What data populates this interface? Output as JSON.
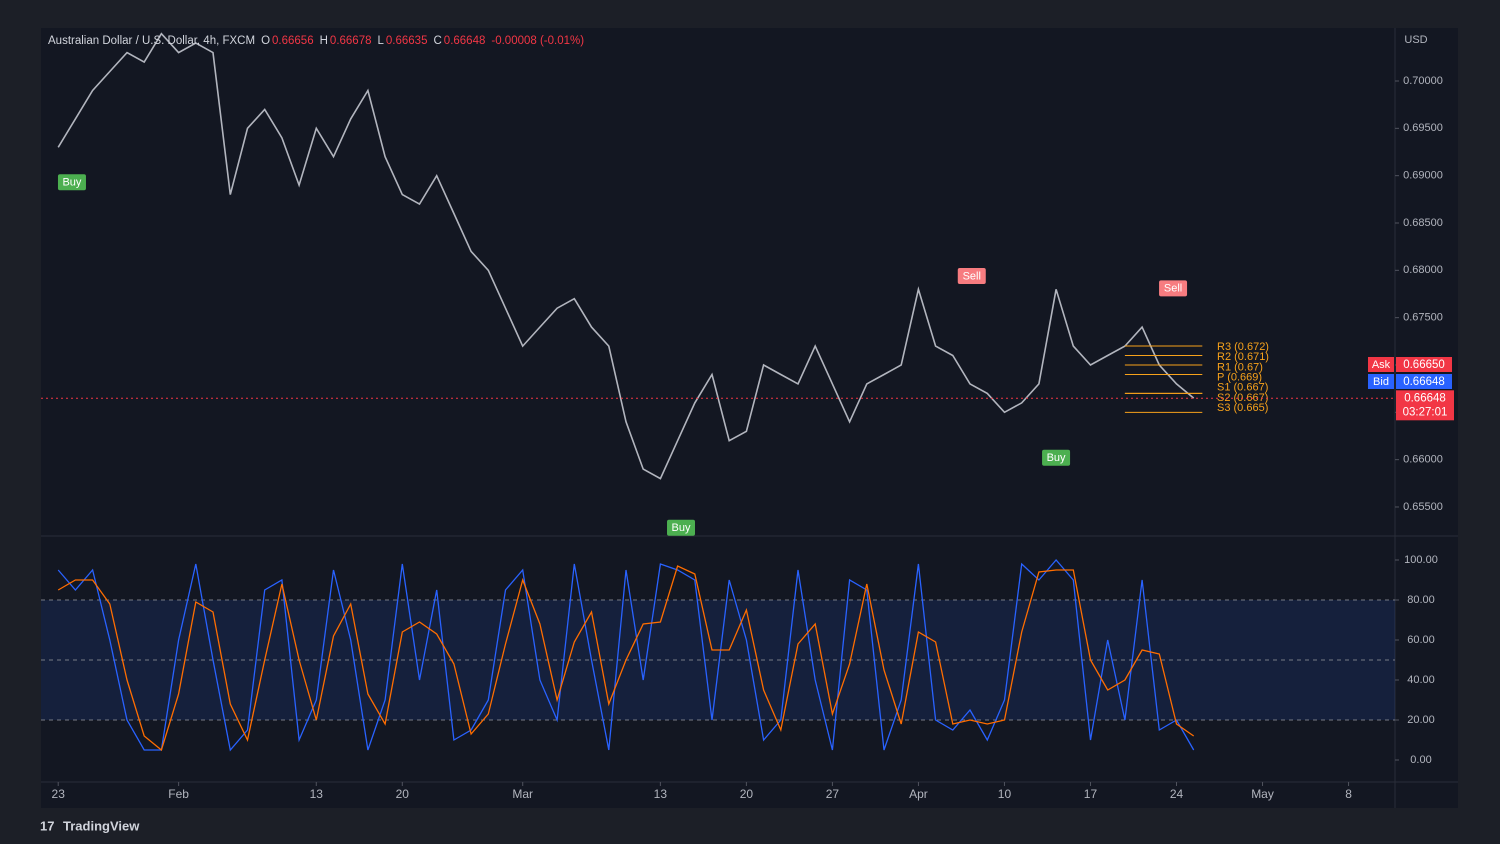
{
  "chart_data": [
    {
      "type": "line",
      "header": {
        "symbol": "Australian Dollar / U.S. Dollar, 4h, FXCM",
        "ohlc": [
          {
            "key": "O",
            "value": 0.66656
          },
          {
            "key": "H",
            "value": 0.66678
          },
          {
            "key": "L",
            "value": 0.66635
          },
          {
            "key": "C",
            "value": 0.66648
          }
        ],
        "change": {
          "value": -8e-05,
          "label": "-0.00008 (-0.01%)"
        }
      },
      "currency": "USD",
      "xlim": [
        -1,
        77.7
      ],
      "xticks": [
        {
          "value": 0,
          "label": "23"
        },
        {
          "value": 7,
          "label": "Feb"
        },
        {
          "value": 15,
          "label": "13"
        },
        {
          "value": 20,
          "label": "20"
        },
        {
          "value": 27,
          "label": "Mar"
        },
        {
          "value": 35,
          "label": "13"
        },
        {
          "value": 40,
          "label": "20"
        },
        {
          "value": 45,
          "label": "27"
        },
        {
          "value": 50,
          "label": "Apr"
        },
        {
          "value": 55,
          "label": "10"
        },
        {
          "value": 60,
          "label": "17"
        },
        {
          "value": 65,
          "label": "24"
        },
        {
          "value": 70,
          "label": "May"
        },
        {
          "value": 75,
          "label": "8"
        }
      ],
      "ylim": [
        0.65204,
        0.7056
      ],
      "yticks": [
        {
          "value": 0.655,
          "label": "0.65500"
        },
        {
          "value": 0.66,
          "label": "0.66000"
        },
        {
          "value": 0.665,
          "label": "0.66500"
        },
        {
          "value": 0.67,
          "label": "0.67000"
        },
        {
          "value": 0.675,
          "label": "0.67500"
        },
        {
          "value": 0.68,
          "label": "0.68000"
        },
        {
          "value": 0.685,
          "label": "0.68500"
        },
        {
          "value": 0.69,
          "label": "0.69000"
        },
        {
          "value": 0.695,
          "label": "0.69500"
        },
        {
          "value": 0.7,
          "label": "0.70000"
        }
      ],
      "series": [
        {
          "name": "AUDUSD",
          "color": "#b2b5be",
          "x": [
            0,
            1,
            2,
            3,
            4,
            5,
            6,
            7,
            8,
            9,
            10,
            11,
            12,
            13,
            14,
            15,
            16,
            17,
            18,
            19,
            20,
            21,
            22,
            23,
            24,
            25,
            26,
            27,
            28,
            29,
            30,
            31,
            32,
            33,
            34,
            35,
            36,
            37,
            38,
            39,
            40,
            41,
            42,
            43,
            44,
            45,
            46,
            47,
            48,
            49,
            50,
            51,
            52,
            53,
            54,
            55,
            56,
            57,
            58,
            59,
            60,
            61,
            62,
            63,
            64,
            65,
            66
          ],
          "values": [
            0.693,
            0.696,
            0.699,
            0.701,
            0.703,
            0.702,
            0.705,
            0.703,
            0.704,
            0.703,
            0.688,
            0.695,
            0.697,
            0.694,
            0.689,
            0.695,
            0.692,
            0.696,
            0.699,
            0.692,
            0.688,
            0.687,
            0.69,
            0.686,
            0.682,
            0.68,
            0.676,
            0.672,
            0.674,
            0.676,
            0.677,
            0.674,
            0.672,
            0.664,
            0.659,
            0.658,
            0.662,
            0.666,
            0.669,
            0.662,
            0.663,
            0.67,
            0.669,
            0.668,
            0.672,
            0.668,
            0.664,
            0.668,
            0.669,
            0.67,
            0.678,
            0.672,
            0.671,
            0.668,
            0.667,
            0.665,
            0.666,
            0.668,
            0.678,
            0.672,
            0.67,
            0.671,
            0.672,
            0.674,
            0.67,
            0.668,
            0.6665
          ]
        }
      ],
      "pivots": [
        {
          "label": "R3 (0.672)",
          "value": 0.672
        },
        {
          "label": "R2 (0.671)",
          "value": 0.671
        },
        {
          "label": "R1 (0.67)",
          "value": 0.67
        },
        {
          "label": "P (0.669)",
          "value": 0.669
        },
        {
          "label": "S1 (0.667)",
          "value": 0.667
        },
        {
          "label": "S2 (0.667)",
          "value": 0.667
        },
        {
          "label": "S3 (0.665)",
          "value": 0.665
        }
      ],
      "signals": [
        {
          "label": "Buy",
          "x": 0.8,
          "y": 0.6893,
          "color": "#4caf50"
        },
        {
          "label": "Buy",
          "x": 36.2,
          "y": 0.6528,
          "color": "#4caf50"
        },
        {
          "label": "Sell",
          "x": 53.1,
          "y": 0.6794,
          "color": "#f77c80"
        },
        {
          "label": "Buy",
          "x": 58,
          "y": 0.6602,
          "color": "#4caf50"
        },
        {
          "label": "Sell",
          "x": 64.8,
          "y": 0.6781,
          "color": "#f77c80"
        }
      ],
      "ask": {
        "name": "Ask",
        "price": {
          "value": 0.6665,
          "label": "0.66650"
        },
        "color": "#f23645"
      },
      "bid": {
        "name": "Bid",
        "price": {
          "value": 0.66648,
          "label": "0.66648"
        },
        "color": "#2962ff"
      },
      "last": {
        "price": 0.66648,
        "countdown": "03:27:01",
        "color": "#f23645"
      }
    },
    {
      "type": "line",
      "xlim": [
        -1,
        77.7
      ],
      "ylim": [
        -10,
        111
      ],
      "yticks": [
        {
          "value": 0,
          "label": "0.00"
        },
        {
          "value": 20,
          "label": "20.00"
        },
        {
          "value": 40,
          "label": "40.00"
        },
        {
          "value": 60,
          "label": "60.00"
        },
        {
          "value": 80,
          "label": "80.00"
        },
        {
          "value": 100,
          "label": "100.00"
        }
      ],
      "levels": [
        20,
        50,
        80
      ],
      "x": [
        0,
        1,
        2,
        3,
        4,
        5,
        6,
        7,
        8,
        9,
        10,
        11,
        12,
        13,
        14,
        15,
        16,
        17,
        18,
        19,
        20,
        21,
        22,
        23,
        24,
        25,
        26,
        27,
        28,
        29,
        30,
        31,
        32,
        33,
        34,
        35,
        36,
        37,
        38,
        39,
        40,
        41,
        42,
        43,
        44,
        45,
        46,
        47,
        48,
        49,
        50,
        51,
        52,
        53,
        54,
        55,
        56,
        57,
        58,
        59,
        60,
        61,
        62,
        63,
        64,
        65,
        66
      ],
      "series": [
        {
          "name": "%K",
          "color": "#2962ff",
          "values": [
            95,
            85,
            95,
            60,
            20,
            5,
            5,
            60,
            98,
            50,
            5,
            15,
            85,
            90,
            10,
            30,
            95,
            60,
            5,
            30,
            98,
            40,
            85,
            10,
            15,
            30,
            85,
            95,
            40,
            20,
            98,
            50,
            5,
            95,
            40,
            98,
            95,
            90,
            20,
            90,
            60,
            10,
            20,
            95,
            40,
            5,
            90,
            85,
            5,
            30,
            98,
            20,
            15,
            25,
            10,
            30,
            98,
            90,
            100,
            90,
            10,
            60,
            20,
            90,
            15,
            20,
            5
          ]
        },
        {
          "name": "%D",
          "color": "#ff6d00",
          "values": [
            85,
            90,
            90,
            78,
            40,
            12,
            5,
            33,
            79,
            74,
            28,
            10,
            50,
            88,
            50,
            20,
            62,
            78,
            33,
            18,
            64,
            69,
            63,
            48,
            13,
            23,
            58,
            90,
            68,
            30,
            59,
            74,
            28,
            50,
            68,
            69,
            97,
            93,
            55,
            55,
            75,
            35,
            15,
            58,
            68,
            23,
            48,
            88,
            45,
            18,
            64,
            59,
            18,
            20,
            18,
            20,
            64,
            94,
            95,
            95,
            50,
            35,
            40,
            55,
            53,
            18,
            12
          ]
        }
      ]
    }
  ],
  "footer": {
    "brand": "TradingView"
  }
}
